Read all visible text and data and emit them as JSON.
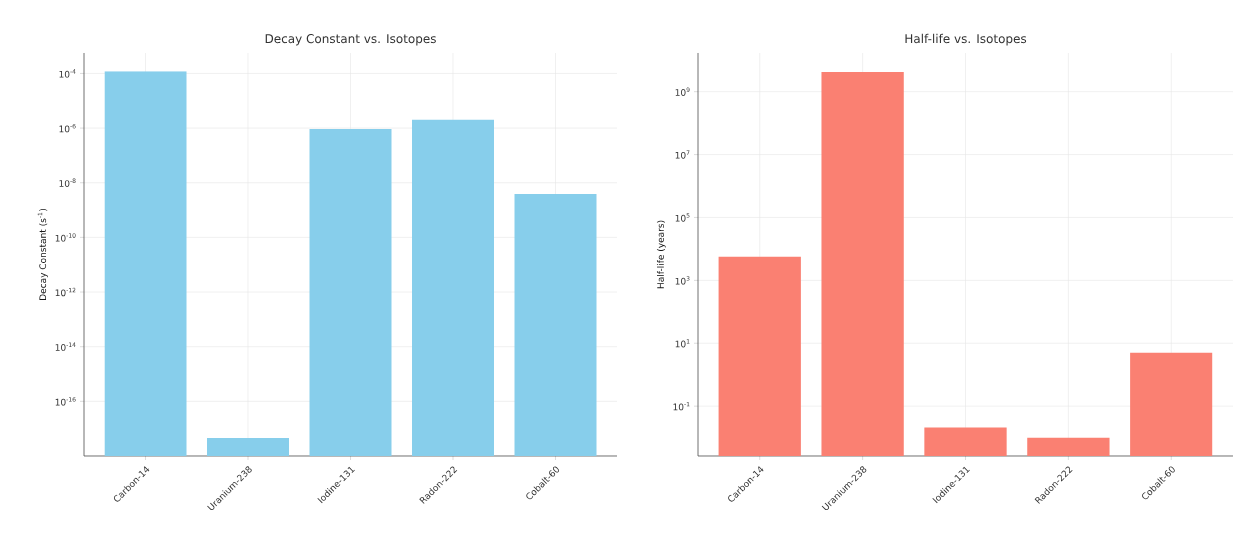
{
  "chart_data": [
    {
      "type": "bar",
      "title": "Decay Constant vs. Isotopes",
      "ylabel": "Decay Constant (s$^{-1}$)",
      "categories": [
        "Carbon-14",
        "Uranium-238",
        "Iodine-131",
        "Radon-222",
        "Cobalt-60"
      ],
      "values": [
        0.00012,
        4.6e-18,
        9.3e-07,
        2e-06,
        3.9e-09
      ],
      "color": "#87ceeb",
      "log": "y",
      "grid": true,
      "ylim": [
        1e-18,
        0.00056
      ],
      "yticks": [
        {
          "value": 1e-16,
          "label": "10$^{-16}$"
        },
        {
          "value": 1e-14,
          "label": "10$^{-14}$"
        },
        {
          "value": 1e-12,
          "label": "10$^{-12}$"
        },
        {
          "value": 1e-10,
          "label": "10$^{-10}$"
        },
        {
          "value": 1e-08,
          "label": "10$^{-8}$"
        },
        {
          "value": 1e-06,
          "label": "10$^{-6}$"
        },
        {
          "value": 0.0001,
          "label": "10$^{-4}$"
        }
      ]
    },
    {
      "type": "bar",
      "title": "Half-life vs. Isotopes",
      "ylabel": "Half-life (years)",
      "categories": [
        "Carbon-14",
        "Uranium-238",
        "Iodine-131",
        "Radon-222",
        "Cobalt-60"
      ],
      "values": [
        5600,
        4200000000.0,
        0.021,
        0.0098,
        5.0
      ],
      "color": "#fa8072",
      "log": "y",
      "grid": true,
      "ylim": [
        0.0026,
        17000000000.0
      ],
      "yticks": [
        {
          "value": 0.1,
          "label": "10$^{-1}$"
        },
        {
          "value": 10,
          "label": "10$^{1}$"
        },
        {
          "value": 1000,
          "label": "10$^{3}$"
        },
        {
          "value": 100000,
          "label": "10$^{5}$"
        },
        {
          "value": 10000000,
          "label": "10$^{7}$"
        },
        {
          "value": 1000000000,
          "label": "10$^{9}$"
        }
      ]
    }
  ]
}
